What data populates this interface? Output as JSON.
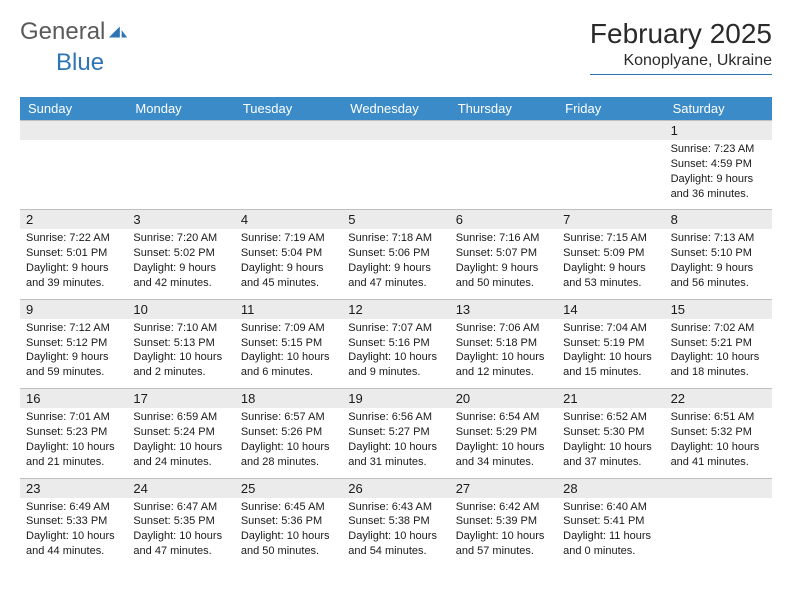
{
  "brand": {
    "word1": "General",
    "word2": "Blue"
  },
  "title": "February 2025",
  "location": "Konoplyane, Ukraine",
  "colors": {
    "header_bar": "#3b8bc9",
    "daynum_bg": "#ebebeb",
    "accent": "#2e75b6",
    "cell_border": "#bfbfbf",
    "text": "#1a1a1a"
  },
  "day_names": [
    "Sunday",
    "Monday",
    "Tuesday",
    "Wednesday",
    "Thursday",
    "Friday",
    "Saturday"
  ],
  "weeks": [
    [
      {
        "blank": true
      },
      {
        "blank": true
      },
      {
        "blank": true
      },
      {
        "blank": true
      },
      {
        "blank": true
      },
      {
        "blank": true
      },
      {
        "day": "1",
        "sunrise": "Sunrise: 7:23 AM",
        "sunset": "Sunset: 4:59 PM",
        "daylight1": "Daylight: 9 hours",
        "daylight2": "and 36 minutes."
      }
    ],
    [
      {
        "day": "2",
        "sunrise": "Sunrise: 7:22 AM",
        "sunset": "Sunset: 5:01 PM",
        "daylight1": "Daylight: 9 hours",
        "daylight2": "and 39 minutes."
      },
      {
        "day": "3",
        "sunrise": "Sunrise: 7:20 AM",
        "sunset": "Sunset: 5:02 PM",
        "daylight1": "Daylight: 9 hours",
        "daylight2": "and 42 minutes."
      },
      {
        "day": "4",
        "sunrise": "Sunrise: 7:19 AM",
        "sunset": "Sunset: 5:04 PM",
        "daylight1": "Daylight: 9 hours",
        "daylight2": "and 45 minutes."
      },
      {
        "day": "5",
        "sunrise": "Sunrise: 7:18 AM",
        "sunset": "Sunset: 5:06 PM",
        "daylight1": "Daylight: 9 hours",
        "daylight2": "and 47 minutes."
      },
      {
        "day": "6",
        "sunrise": "Sunrise: 7:16 AM",
        "sunset": "Sunset: 5:07 PM",
        "daylight1": "Daylight: 9 hours",
        "daylight2": "and 50 minutes."
      },
      {
        "day": "7",
        "sunrise": "Sunrise: 7:15 AM",
        "sunset": "Sunset: 5:09 PM",
        "daylight1": "Daylight: 9 hours",
        "daylight2": "and 53 minutes."
      },
      {
        "day": "8",
        "sunrise": "Sunrise: 7:13 AM",
        "sunset": "Sunset: 5:10 PM",
        "daylight1": "Daylight: 9 hours",
        "daylight2": "and 56 minutes."
      }
    ],
    [
      {
        "day": "9",
        "sunrise": "Sunrise: 7:12 AM",
        "sunset": "Sunset: 5:12 PM",
        "daylight1": "Daylight: 9 hours",
        "daylight2": "and 59 minutes."
      },
      {
        "day": "10",
        "sunrise": "Sunrise: 7:10 AM",
        "sunset": "Sunset: 5:13 PM",
        "daylight1": "Daylight: 10 hours",
        "daylight2": "and 2 minutes."
      },
      {
        "day": "11",
        "sunrise": "Sunrise: 7:09 AM",
        "sunset": "Sunset: 5:15 PM",
        "daylight1": "Daylight: 10 hours",
        "daylight2": "and 6 minutes."
      },
      {
        "day": "12",
        "sunrise": "Sunrise: 7:07 AM",
        "sunset": "Sunset: 5:16 PM",
        "daylight1": "Daylight: 10 hours",
        "daylight2": "and 9 minutes."
      },
      {
        "day": "13",
        "sunrise": "Sunrise: 7:06 AM",
        "sunset": "Sunset: 5:18 PM",
        "daylight1": "Daylight: 10 hours",
        "daylight2": "and 12 minutes."
      },
      {
        "day": "14",
        "sunrise": "Sunrise: 7:04 AM",
        "sunset": "Sunset: 5:19 PM",
        "daylight1": "Daylight: 10 hours",
        "daylight2": "and 15 minutes."
      },
      {
        "day": "15",
        "sunrise": "Sunrise: 7:02 AM",
        "sunset": "Sunset: 5:21 PM",
        "daylight1": "Daylight: 10 hours",
        "daylight2": "and 18 minutes."
      }
    ],
    [
      {
        "day": "16",
        "sunrise": "Sunrise: 7:01 AM",
        "sunset": "Sunset: 5:23 PM",
        "daylight1": "Daylight: 10 hours",
        "daylight2": "and 21 minutes."
      },
      {
        "day": "17",
        "sunrise": "Sunrise: 6:59 AM",
        "sunset": "Sunset: 5:24 PM",
        "daylight1": "Daylight: 10 hours",
        "daylight2": "and 24 minutes."
      },
      {
        "day": "18",
        "sunrise": "Sunrise: 6:57 AM",
        "sunset": "Sunset: 5:26 PM",
        "daylight1": "Daylight: 10 hours",
        "daylight2": "and 28 minutes."
      },
      {
        "day": "19",
        "sunrise": "Sunrise: 6:56 AM",
        "sunset": "Sunset: 5:27 PM",
        "daylight1": "Daylight: 10 hours",
        "daylight2": "and 31 minutes."
      },
      {
        "day": "20",
        "sunrise": "Sunrise: 6:54 AM",
        "sunset": "Sunset: 5:29 PM",
        "daylight1": "Daylight: 10 hours",
        "daylight2": "and 34 minutes."
      },
      {
        "day": "21",
        "sunrise": "Sunrise: 6:52 AM",
        "sunset": "Sunset: 5:30 PM",
        "daylight1": "Daylight: 10 hours",
        "daylight2": "and 37 minutes."
      },
      {
        "day": "22",
        "sunrise": "Sunrise: 6:51 AM",
        "sunset": "Sunset: 5:32 PM",
        "daylight1": "Daylight: 10 hours",
        "daylight2": "and 41 minutes."
      }
    ],
    [
      {
        "day": "23",
        "sunrise": "Sunrise: 6:49 AM",
        "sunset": "Sunset: 5:33 PM",
        "daylight1": "Daylight: 10 hours",
        "daylight2": "and 44 minutes."
      },
      {
        "day": "24",
        "sunrise": "Sunrise: 6:47 AM",
        "sunset": "Sunset: 5:35 PM",
        "daylight1": "Daylight: 10 hours",
        "daylight2": "and 47 minutes."
      },
      {
        "day": "25",
        "sunrise": "Sunrise: 6:45 AM",
        "sunset": "Sunset: 5:36 PM",
        "daylight1": "Daylight: 10 hours",
        "daylight2": "and 50 minutes."
      },
      {
        "day": "26",
        "sunrise": "Sunrise: 6:43 AM",
        "sunset": "Sunset: 5:38 PM",
        "daylight1": "Daylight: 10 hours",
        "daylight2": "and 54 minutes."
      },
      {
        "day": "27",
        "sunrise": "Sunrise: 6:42 AM",
        "sunset": "Sunset: 5:39 PM",
        "daylight1": "Daylight: 10 hours",
        "daylight2": "and 57 minutes."
      },
      {
        "day": "28",
        "sunrise": "Sunrise: 6:40 AM",
        "sunset": "Sunset: 5:41 PM",
        "daylight1": "Daylight: 11 hours",
        "daylight2": "and 0 minutes."
      },
      {
        "blank": true
      }
    ]
  ]
}
